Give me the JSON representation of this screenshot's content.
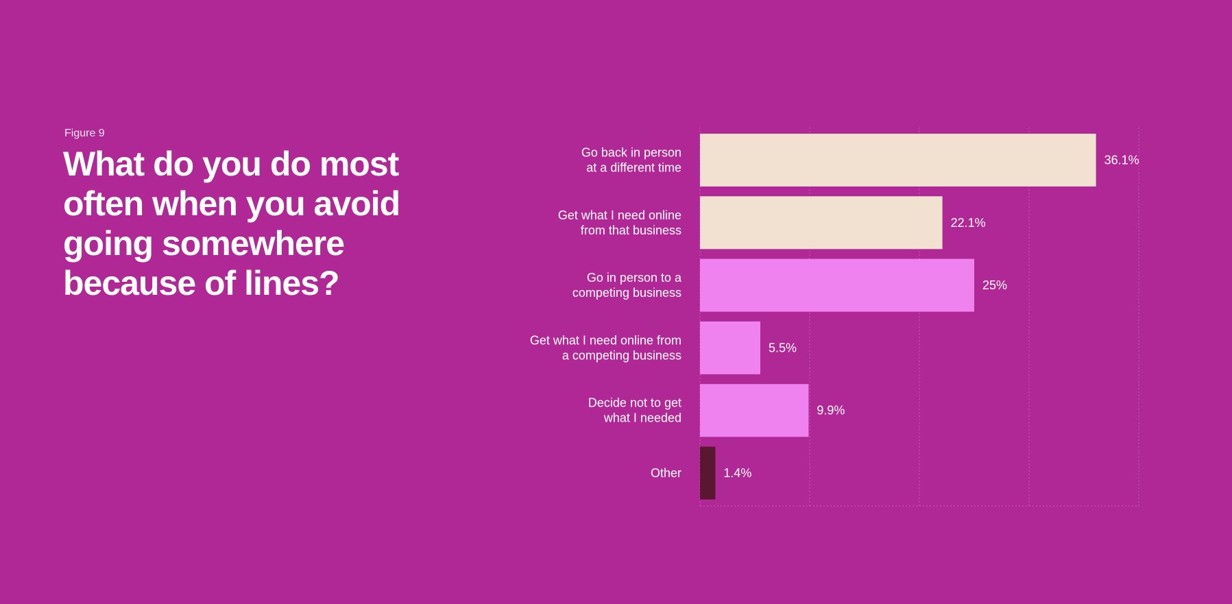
{
  "figure_label": "Figure 9",
  "title": "What do you do most often when you avoid going somewhere because of lines?",
  "colors": {
    "background": "#b02896",
    "gridline": "#c95cb5"
  },
  "chart_data": {
    "type": "bar",
    "orientation": "horizontal",
    "xlim": [
      0,
      40
    ],
    "grid": true,
    "value_suffix": "%",
    "categories": [
      [
        "Go back in person",
        "at a different time"
      ],
      [
        "Get what I need online",
        "from that business"
      ],
      [
        "Go in person to a",
        "competing business"
      ],
      [
        "Get what I need online from",
        "a competing business"
      ],
      [
        "Decide not to get",
        "what I needed"
      ],
      [
        "Other"
      ]
    ],
    "values": [
      36.1,
      22.1,
      25,
      5.5,
      9.9,
      1.4
    ],
    "bar_colors": [
      "#f2e0d0",
      "#f2e0d0",
      "#f082f0",
      "#f082f0",
      "#f082f0",
      "#5a1830"
    ]
  }
}
